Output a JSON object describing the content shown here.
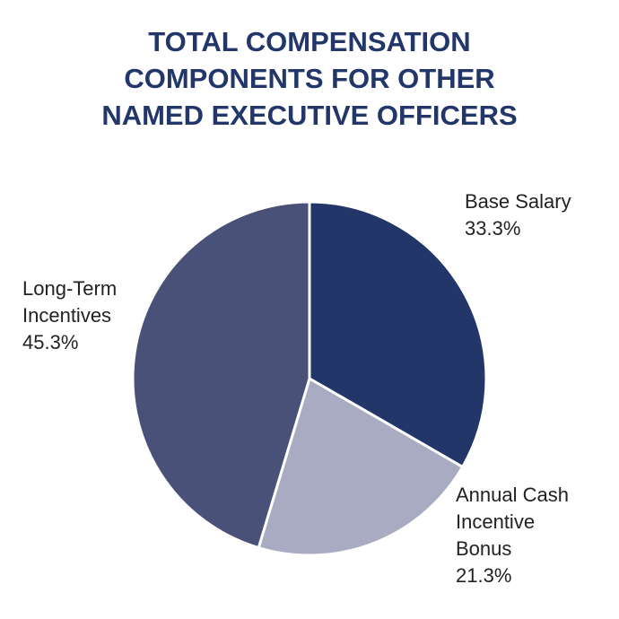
{
  "chart_data": {
    "type": "pie",
    "title_lines": [
      "TOTAL COMPENSATION",
      "COMPONENTS FOR OTHER",
      "NAMED EXECUTIVE OFFICERS"
    ],
    "title": "TOTAL COMPENSATION COMPONENTS FOR OTHER NAMED EXECUTIVE OFFICERS",
    "slices": [
      {
        "name": "Base Salary",
        "label_lines": [
          "Base Salary"
        ],
        "value": 33.3,
        "value_label": "33.3%",
        "color": "#22366a"
      },
      {
        "name": "Annual Cash Incentive Bonus",
        "label_lines": [
          "Annual Cash",
          "Incentive",
          "Bonus"
        ],
        "value": 21.3,
        "value_label": "21.3%",
        "color": "#a9abc3"
      },
      {
        "name": "Long-Term Incentives",
        "label_lines": [
          "Long-Term",
          "Incentives"
        ],
        "value": 45.3,
        "value_label": "45.3%",
        "color": "#4a5179"
      }
    ],
    "start_angle": "12 o'clock",
    "direction": "clockwise"
  }
}
